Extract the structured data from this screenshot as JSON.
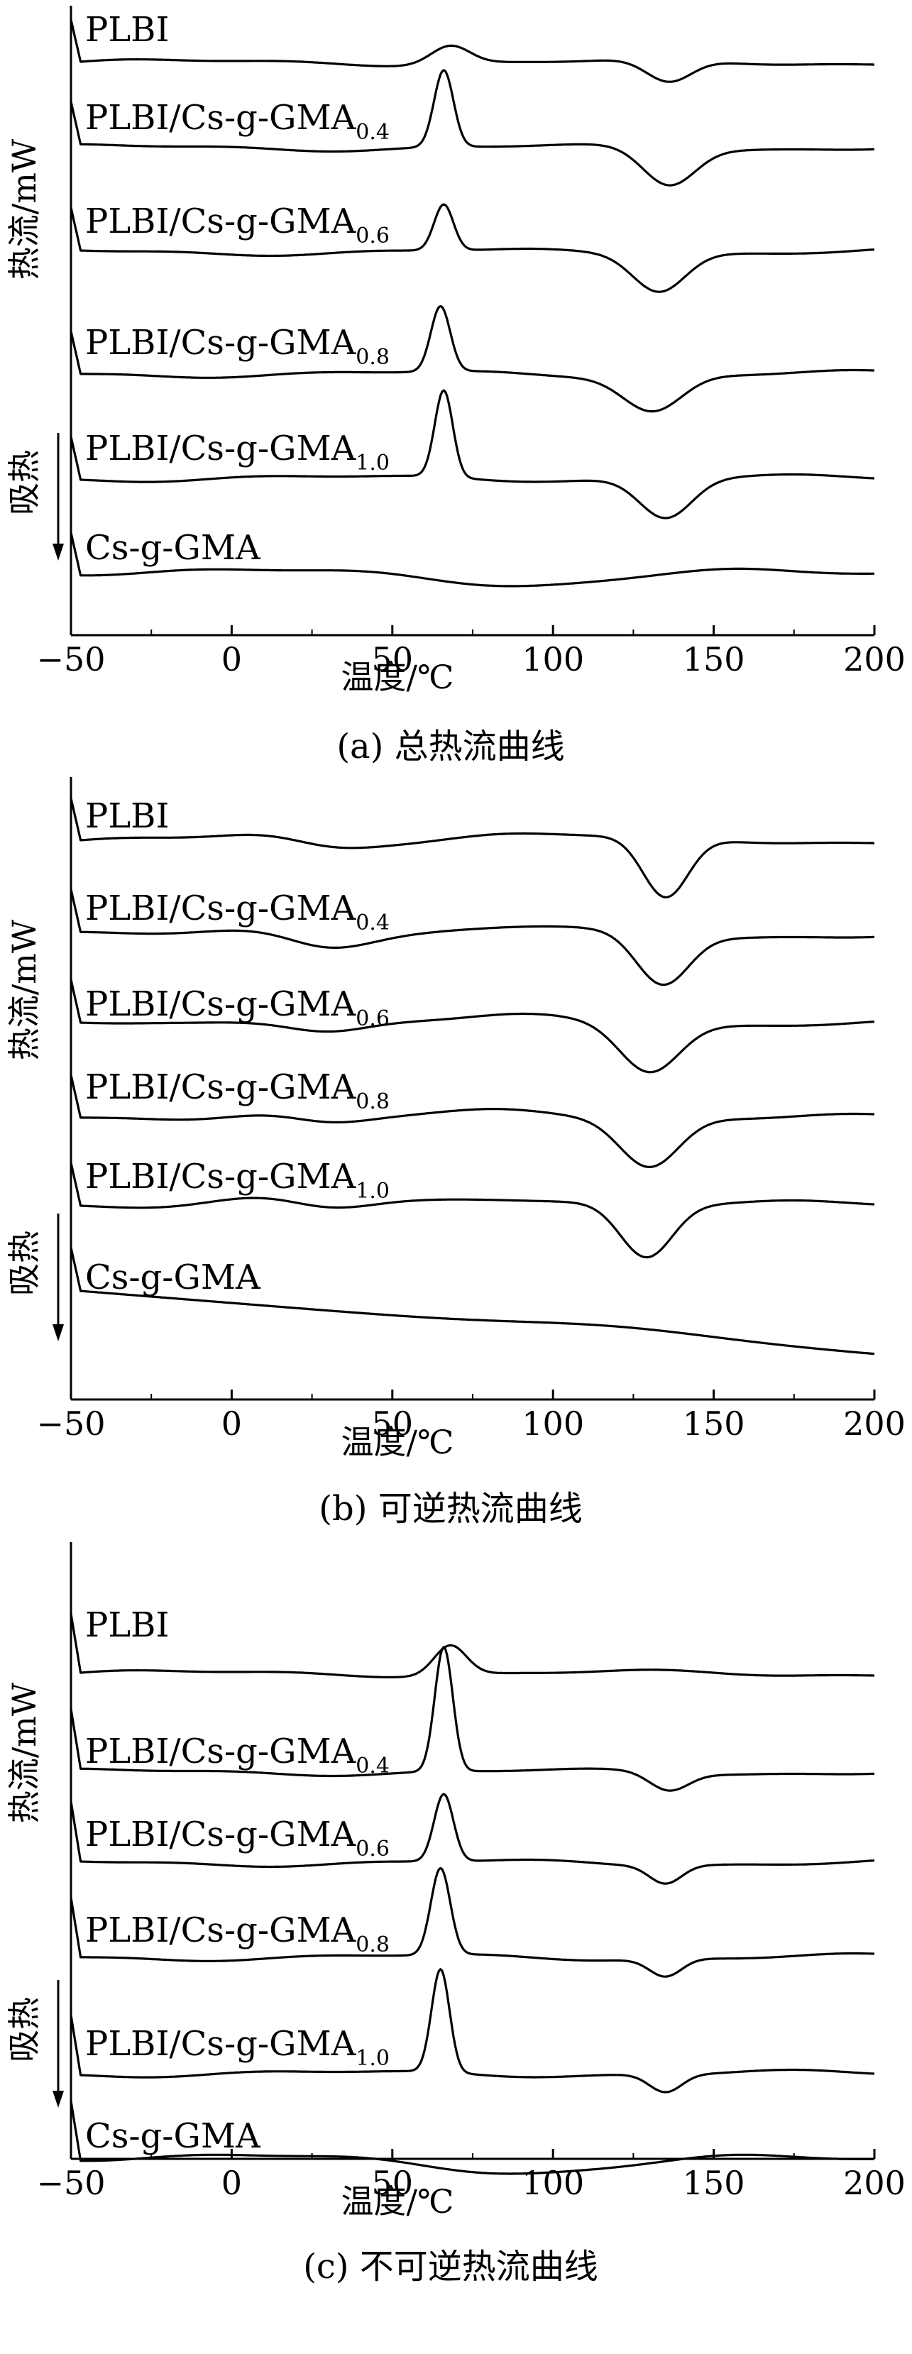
{
  "chart_data": [
    {
      "type": "line",
      "caption": "(a) 总热流曲线",
      "xlabel": "温度/℃",
      "ylabel": "热流/mW",
      "endo_label": "吸热",
      "xlim": [
        -50,
        200
      ],
      "xticks": [
        -50,
        0,
        50,
        100,
        150,
        200
      ],
      "series": [
        {
          "name": "PLBI",
          "sub": "",
          "peaks": [
            {
              "c": 68,
              "w": 6,
              "h": 26
            },
            {
              "c": 136,
              "w": 7,
              "h": -32
            }
          ]
        },
        {
          "name": "PLBI/Cs-g-GMA",
          "sub": "0.4",
          "peaks": [
            {
              "c": 66,
              "w": 3,
              "h": 108
            },
            {
              "c": 136,
              "w": 8,
              "h": -52
            }
          ]
        },
        {
          "name": "PLBI/Cs-g-GMA",
          "sub": "0.6",
          "peaks": [
            {
              "c": 66,
              "w": 3,
              "h": 65
            },
            {
              "c": 133,
              "w": 8,
              "h": -52
            }
          ]
        },
        {
          "name": "PLBI/Cs-g-GMA",
          "sub": "0.8",
          "peaks": [
            {
              "c": 65,
              "w": 3,
              "h": 92
            },
            {
              "c": 131,
              "w": 9,
              "h": -50
            }
          ]
        },
        {
          "name": "PLBI/Cs-g-GMA",
          "sub": "1.0",
          "peaks": [
            {
              "c": 66,
              "w": 2.8,
              "h": 122
            },
            {
              "c": 135,
              "w": 8,
              "h": -55
            }
          ]
        },
        {
          "name": "Cs-g-GMA",
          "sub": "",
          "peaks": [
            {
              "c": 95,
              "w": 25,
              "h": -17
            }
          ]
        }
      ]
    },
    {
      "type": "line",
      "caption": "(b) 可逆热流曲线",
      "xlabel": "温度/℃",
      "ylabel": "热流/mW",
      "endo_label": "吸热",
      "xlim": [
        -50,
        200
      ],
      "xticks": [
        -50,
        0,
        50,
        100,
        150,
        200
      ],
      "series": [
        {
          "name": "PLBI",
          "sub": "",
          "peaks": [
            {
              "c": 30,
              "w": 12,
              "h": -10
            },
            {
              "c": 135,
              "w": 7,
              "h": -85
            }
          ]
        },
        {
          "name": "PLBI/Cs-g-GMA",
          "sub": "0.4",
          "peaks": [
            {
              "c": 30,
              "w": 12,
              "h": -15
            },
            {
              "c": 134,
              "w": 8,
              "h": -70
            }
          ]
        },
        {
          "name": "PLBI/Cs-g-GMA",
          "sub": "0.6",
          "peaks": [
            {
              "c": 30,
              "w": 12,
              "h": -12
            },
            {
              "c": 130,
              "w": 9,
              "h": -65
            }
          ]
        },
        {
          "name": "PLBI/Cs-g-GMA",
          "sub": "0.8",
          "peaks": [
            {
              "c": 30,
              "w": 12,
              "h": -12
            },
            {
              "c": 130,
              "w": 9,
              "h": -68
            }
          ]
        },
        {
          "name": "PLBI/Cs-g-GMA",
          "sub": "1.0",
          "peaks": [
            {
              "c": 30,
              "w": 12,
              "h": -10
            },
            {
              "c": 129,
              "w": 8,
              "h": -75
            }
          ]
        },
        {
          "name": "Cs-g-GMA",
          "sub": "",
          "peaks": []
        }
      ]
    },
    {
      "type": "line",
      "caption": "(c) 不可逆热流曲线",
      "xlabel": "温度/℃",
      "ylabel": "热流/mW",
      "endo_label": "吸热",
      "xlim": [
        -50,
        200
      ],
      "xticks": [
        -50,
        0,
        50,
        100,
        150,
        200
      ],
      "series": [
        {
          "name": "PLBI",
          "sub": "",
          "peaks": [
            {
              "c": 68,
              "w": 5,
              "h": 42
            }
          ]
        },
        {
          "name": "PLBI/Cs-g-GMA",
          "sub": "0.4",
          "peaks": [
            {
              "c": 66,
              "w": 2.8,
              "h": 175
            },
            {
              "c": 136,
              "w": 6,
              "h": -25
            }
          ]
        },
        {
          "name": "PLBI/Cs-g-GMA",
          "sub": "0.6",
          "peaks": [
            {
              "c": 66,
              "w": 3,
              "h": 95
            },
            {
              "c": 135,
              "w": 5,
              "h": -25
            }
          ]
        },
        {
          "name": "PLBI/Cs-g-GMA",
          "sub": "0.8",
          "peaks": [
            {
              "c": 65,
              "w": 3,
              "h": 122
            },
            {
              "c": 135,
              "w": 5,
              "h": -25
            }
          ]
        },
        {
          "name": "PLBI/Cs-g-GMA",
          "sub": "1.0",
          "peaks": [
            {
              "c": 65,
              "w": 2.8,
              "h": 145
            },
            {
              "c": 135,
              "w": 5,
              "h": -25
            }
          ]
        },
        {
          "name": "Cs-g-GMA",
          "sub": "",
          "peaks": [
            {
              "c": 95,
              "w": 28,
              "h": -20
            }
          ]
        }
      ]
    }
  ]
}
